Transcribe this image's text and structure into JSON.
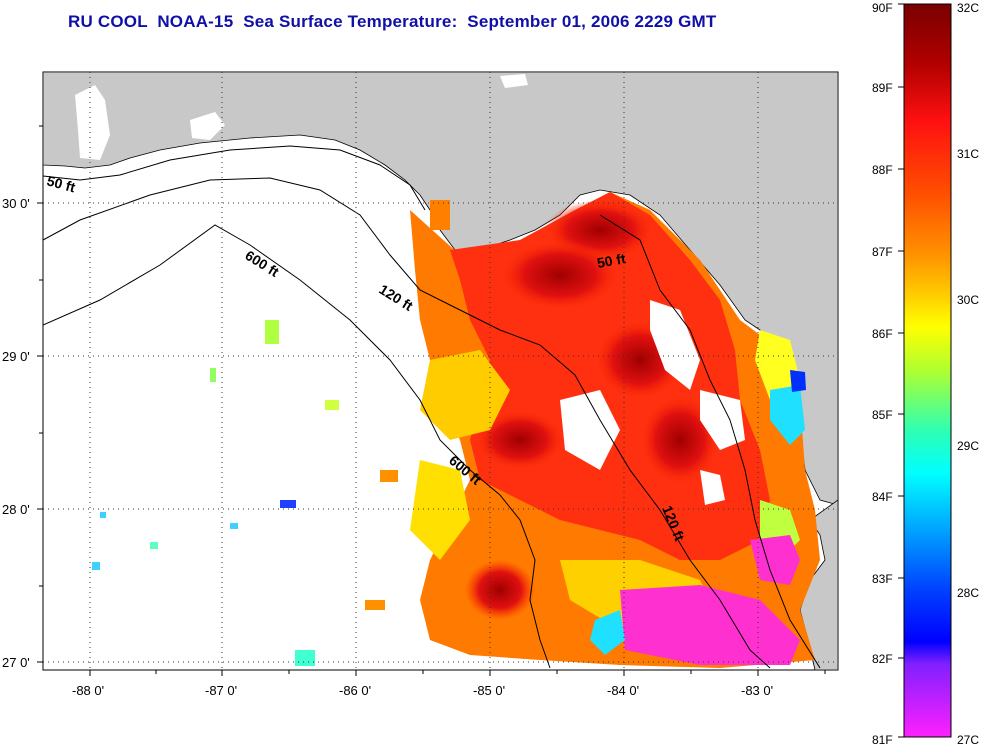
{
  "title": "RU COOL  NOAA-15  Sea Surface Temperature:  September 01, 2006 2229 GMT",
  "map": {
    "lon_ticks": [
      "-88 0'",
      "-87 0'",
      "-86 0'",
      "-85 0'",
      "-84 0'",
      "-83 0'"
    ],
    "lat_ticks": [
      "30 0'",
      "29 0'",
      "28 0'",
      "27 0'"
    ],
    "lon_range": [
      -88.3,
      -82.4
    ],
    "lat_range": [
      26.95,
      30.9
    ],
    "grid": "dotted",
    "land_color": "#c8c8c8",
    "water_color": "#ffffff",
    "depth_contours": [
      {
        "label": "50 ft"
      },
      {
        "label": "120 ft"
      },
      {
        "label": "600 ft"
      },
      {
        "label": "600 ft"
      },
      {
        "label": "120 ft"
      },
      {
        "label": "50 ft"
      }
    ]
  },
  "colorbar": {
    "fahrenheit_labels": [
      "90F",
      "89F",
      "88F",
      "87F",
      "86F",
      "85F",
      "84F",
      "83F",
      "82F",
      "81F"
    ],
    "celsius_labels": [
      "32C",
      "31C",
      "30C",
      "29C",
      "28C",
      "27C"
    ],
    "colors": [
      "#7a0000",
      "#c80000",
      "#ff1010",
      "#ff5000",
      "#ff9000",
      "#ffd000",
      "#ffff00",
      "#b0ff30",
      "#30ffb0",
      "#00ffff",
      "#00a0ff",
      "#0000ff",
      "#8020ff",
      "#ff20ff"
    ]
  }
}
